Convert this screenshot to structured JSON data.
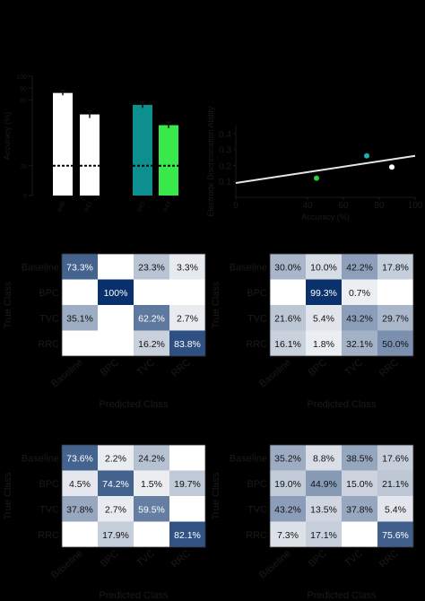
{
  "chart_data": [
    {
      "type": "bar",
      "categories": [
        "p49",
        "p41",
        "p45",
        "p44"
      ],
      "values": [
        86,
        68,
        76,
        59
      ],
      "errors": [
        2,
        3,
        2.5,
        2.5
      ],
      "colors": [
        "#ffffff",
        "#ffffff",
        "#0e8f8f",
        "#39e84b"
      ],
      "chance_line": 25,
      "ylabel": "Accuracy (%)",
      "yticks": [
        0,
        25,
        80,
        90,
        100
      ],
      "ylim": [
        0,
        100
      ]
    },
    {
      "type": "scatter",
      "x": [
        45,
        73,
        87
      ],
      "y": [
        0.12,
        0.26,
        0.19
      ],
      "colors": [
        "#2ecc40",
        "#19b3b3",
        "#ffffff"
      ],
      "regression": {
        "x": [
          0,
          100
        ],
        "y": [
          0.09,
          0.26
        ]
      },
      "xlabel": "Accuracy (%)",
      "ylabel": "Electrode Discrimination Ability",
      "xticks": [
        0,
        40,
        60,
        80,
        100
      ],
      "yticks": [
        0.1,
        0.2,
        0.3,
        0.4
      ],
      "xlim": [
        0,
        100
      ],
      "ylim": [
        0,
        0.45
      ]
    },
    {
      "type": "heatmap",
      "rows": [
        "Baseline",
        "BPC",
        "TVC",
        "RRC"
      ],
      "cols": [
        "Baseline",
        "BPC",
        "TVC",
        "RRC"
      ],
      "values": [
        [
          73.3,
          null,
          23.3,
          3.3
        ],
        [
          null,
          100,
          null,
          null
        ],
        [
          35.1,
          null,
          62.2,
          2.7
        ],
        [
          null,
          null,
          16.2,
          83.8
        ]
      ],
      "labels": [
        [
          "73.3%",
          "",
          "23.3%",
          "3.3%"
        ],
        [
          "",
          "100%",
          "",
          ""
        ],
        [
          "35.1%",
          "",
          "62.2%",
          "2.7%"
        ],
        [
          "",
          "",
          "16.2%",
          "83.8%"
        ]
      ],
      "xlabel": "Predicted Class",
      "ylabel": "True Class"
    },
    {
      "type": "heatmap",
      "rows": [
        "Baseline",
        "BPC",
        "TVC",
        "RRC"
      ],
      "cols": [
        "Baseline",
        "BPC",
        "TVC",
        "RRC"
      ],
      "values": [
        [
          30.0,
          10.0,
          42.2,
          17.8
        ],
        [
          null,
          99.3,
          0.7,
          null
        ],
        [
          21.6,
          5.4,
          43.2,
          29.7
        ],
        [
          16.1,
          1.8,
          32.1,
          50.0
        ]
      ],
      "labels": [
        [
          "30.0%",
          "10.0%",
          "42.2%",
          "17.8%"
        ],
        [
          "",
          "99.3%",
          "0.7%",
          ""
        ],
        [
          "21.6%",
          "5.4%",
          "43.2%",
          "29.7%"
        ],
        [
          "16.1%",
          "1.8%",
          "32.1%",
          "50.0%"
        ]
      ],
      "xlabel": "Predicted Class",
      "ylabel": "True Class"
    },
    {
      "type": "heatmap",
      "rows": [
        "Baseline",
        "BPC",
        "TVC",
        "RRC"
      ],
      "cols": [
        "Baseline",
        "BPC",
        "TVC",
        "RRC"
      ],
      "values": [
        [
          73.6,
          2.2,
          24.2,
          null
        ],
        [
          4.5,
          74.2,
          1.5,
          19.7
        ],
        [
          37.8,
          2.7,
          59.5,
          null
        ],
        [
          null,
          17.9,
          null,
          82.1
        ]
      ],
      "labels": [
        [
          "73.6%",
          "2.2%",
          "24.2%",
          ""
        ],
        [
          "4.5%",
          "74.2%",
          "1.5%",
          "19.7%"
        ],
        [
          "37.8%",
          "2.7%",
          "59.5%",
          ""
        ],
        [
          "",
          "17.9%",
          "",
          "82.1%"
        ]
      ],
      "xlabel": "Predicted Class",
      "ylabel": "True Class"
    },
    {
      "type": "heatmap",
      "rows": [
        "Baseline",
        "BPC",
        "TVC",
        "RRC"
      ],
      "cols": [
        "Baseline",
        "BPC",
        "TVC",
        "RRC"
      ],
      "values": [
        [
          35.2,
          8.8,
          38.5,
          17.6
        ],
        [
          19.0,
          44.9,
          15.0,
          21.1
        ],
        [
          43.2,
          13.5,
          37.8,
          5.4
        ],
        [
          7.3,
          17.1,
          null,
          75.6
        ]
      ],
      "labels": [
        [
          "35.2%",
          "8.8%",
          "38.5%",
          "17.6%"
        ],
        [
          "19.0%",
          "44.9%",
          "15.0%",
          "21.1%"
        ],
        [
          "43.2%",
          "13.5%",
          "37.8%",
          "5.4%"
        ],
        [
          "7.3%",
          "17.1%",
          "",
          "75.6%"
        ]
      ],
      "xlabel": "Predicted Class",
      "ylabel": "True Class"
    }
  ]
}
